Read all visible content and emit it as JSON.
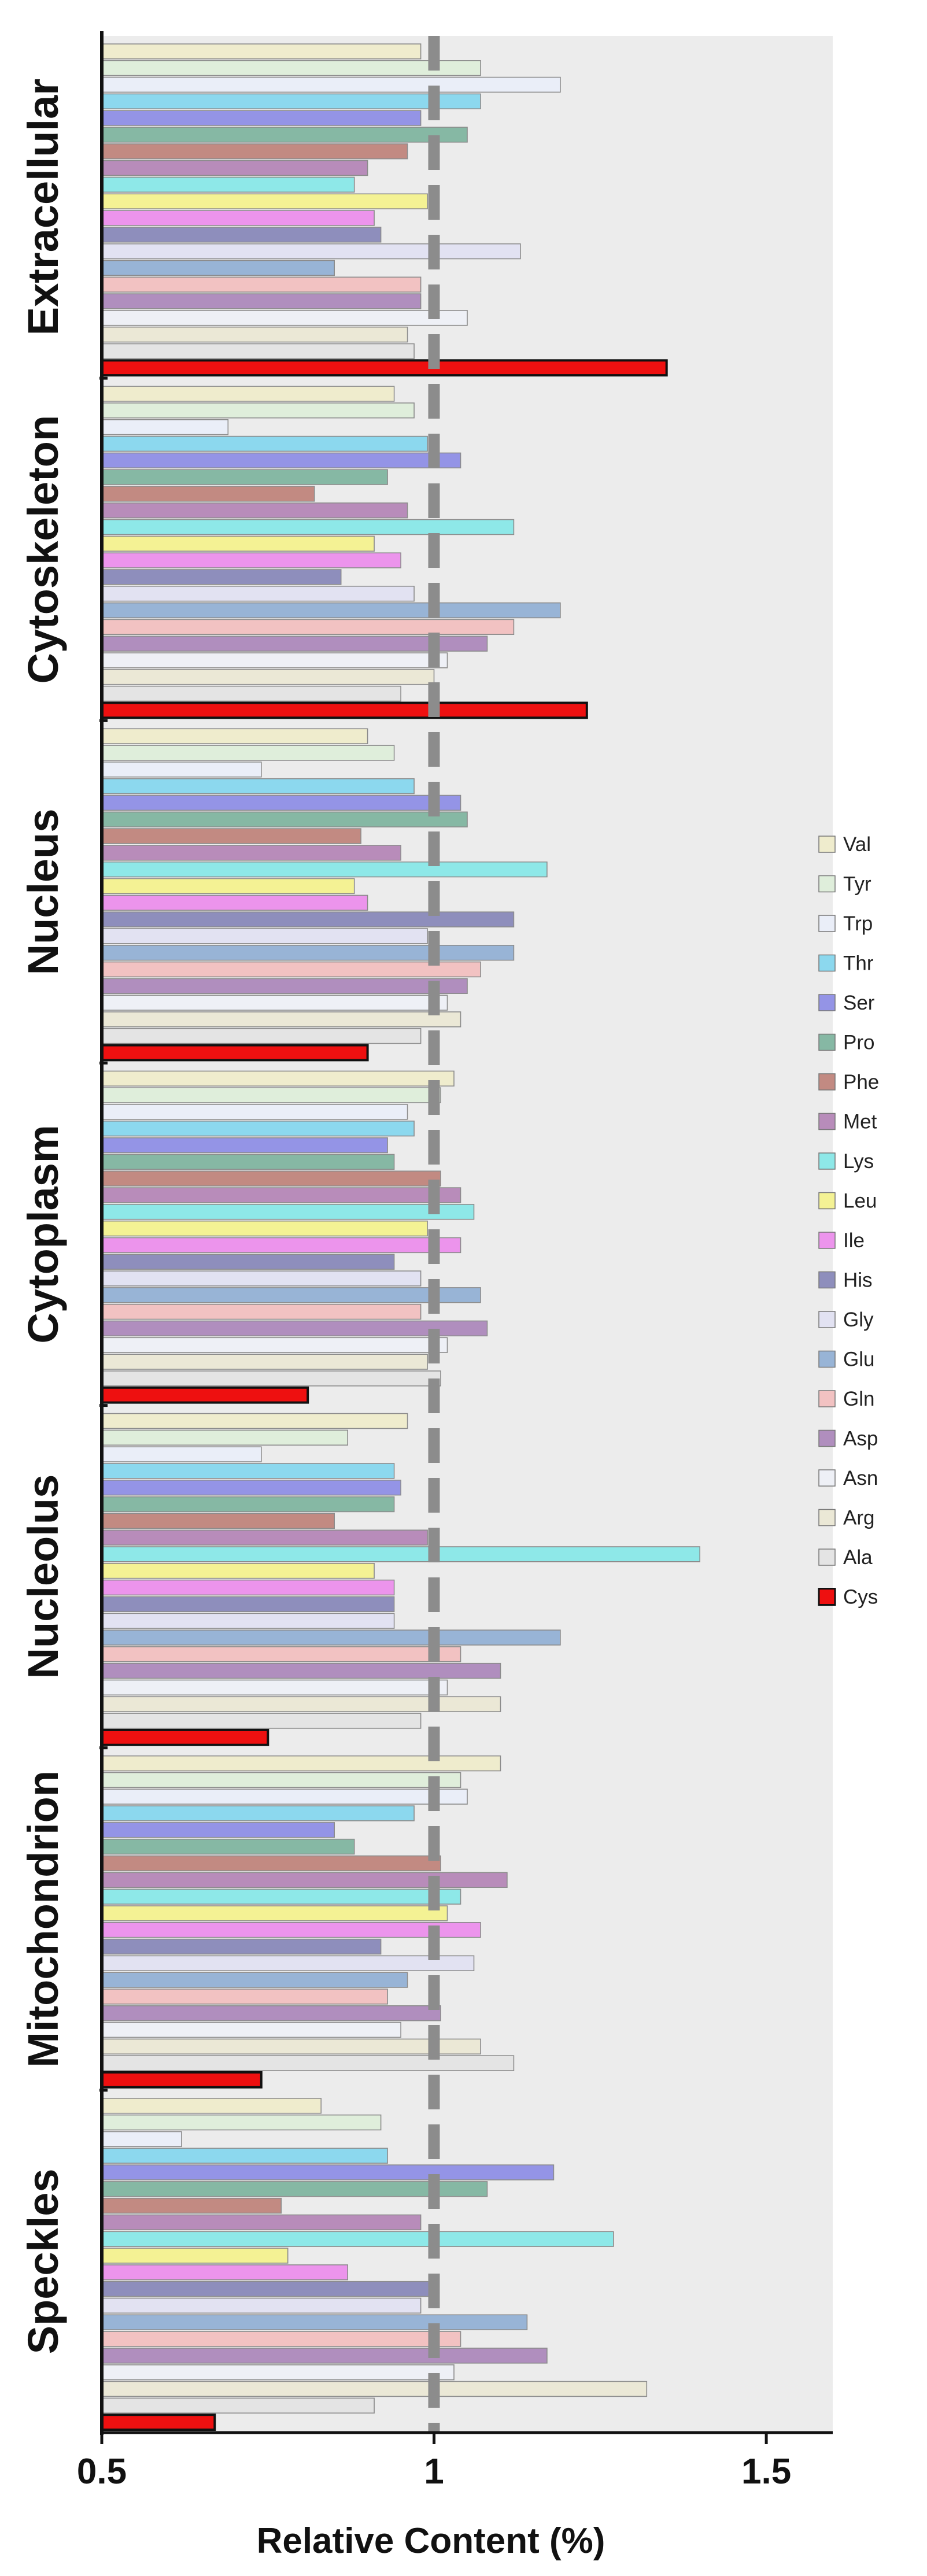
{
  "chart_data": {
    "type": "bar",
    "orientation": "horizontal",
    "xlabel": "Relative Content (%)",
    "xlim": [
      0.5,
      1.6
    ],
    "xticks": [
      0.5,
      1,
      1.5
    ],
    "xtick_labels": [
      "0.5",
      "1",
      "1.5"
    ],
    "reference_line": 1,
    "legend_position": "right",
    "colors": {
      "Val": "#efeccd",
      "Tyr": "#dfeedb",
      "Trp": "#eaeef8",
      "Thr": "#8cd8ee",
      "Ser": "#9494e6",
      "Pro": "#86b8a4",
      "Phe": "#c28a82",
      "Met": "#b88cba",
      "Lys": "#8ee8e8",
      "Leu": "#f4f294",
      "Ile": "#ec94ec",
      "His": "#8e8ebc",
      "Gly": "#e2e2f2",
      "Glu": "#98b4d6",
      "Gln": "#f2c2c2",
      "Asp": "#b08ebe",
      "Asn": "#eef0f6",
      "Arg": "#ebe8d6",
      "Ala": "#e4e4e4",
      "Cys": "#ee1010"
    },
    "series_order": [
      "Val",
      "Tyr",
      "Trp",
      "Thr",
      "Ser",
      "Pro",
      "Phe",
      "Met",
      "Lys",
      "Leu",
      "Ile",
      "His",
      "Gly",
      "Glu",
      "Gln",
      "Asp",
      "Asn",
      "Arg",
      "Ala",
      "Cys"
    ],
    "legend": [
      "Val",
      "Tyr",
      "Trp",
      "Thr",
      "Ser",
      "Pro",
      "Phe",
      "Met",
      "Lys",
      "Leu",
      "Ile",
      "His",
      "Gly",
      "Glu",
      "Gln",
      "Asp",
      "Asn",
      "Arg",
      "Ala",
      "Cys"
    ],
    "groups": [
      {
        "name": "Extracellular",
        "values": [
          0.98,
          1.07,
          1.19,
          1.07,
          0.98,
          1.05,
          0.96,
          0.9,
          0.88,
          0.99,
          0.91,
          0.92,
          1.13,
          0.85,
          0.98,
          0.98,
          1.05,
          0.96,
          0.97,
          1.35
        ]
      },
      {
        "name": "Cytoskeleton",
        "values": [
          0.94,
          0.97,
          0.69,
          0.99,
          1.04,
          0.93,
          0.82,
          0.96,
          1.12,
          0.91,
          0.95,
          0.86,
          0.97,
          1.19,
          1.12,
          1.08,
          1.02,
          1.0,
          0.95,
          1.23
        ]
      },
      {
        "name": "Nucleus",
        "values": [
          0.9,
          0.94,
          0.74,
          0.97,
          1.04,
          1.05,
          0.89,
          0.95,
          1.17,
          0.88,
          0.9,
          1.12,
          0.99,
          1.12,
          1.07,
          1.05,
          1.02,
          1.04,
          0.98,
          0.9
        ]
      },
      {
        "name": "Cytoplasm",
        "values": [
          1.03,
          1.01,
          0.96,
          0.97,
          0.93,
          0.94,
          1.01,
          1.04,
          1.06,
          0.99,
          1.04,
          0.94,
          0.98,
          1.07,
          0.98,
          1.08,
          1.02,
          0.99,
          1.01,
          0.81
        ]
      },
      {
        "name": "Nucleolus",
        "values": [
          0.96,
          0.87,
          0.74,
          0.94,
          0.95,
          0.94,
          0.85,
          0.99,
          1.4,
          0.91,
          0.94,
          0.94,
          0.94,
          1.19,
          1.04,
          1.1,
          1.02,
          1.1,
          0.98,
          0.75
        ]
      },
      {
        "name": "Mitochondrion",
        "values": [
          1.1,
          1.04,
          1.05,
          0.97,
          0.85,
          0.88,
          1.01,
          1.11,
          1.04,
          1.02,
          1.07,
          0.92,
          1.06,
          0.96,
          0.93,
          1.01,
          0.95,
          1.07,
          1.12,
          0.74
        ]
      },
      {
        "name": "Speckles",
        "values": [
          0.83,
          0.92,
          0.62,
          0.93,
          1.18,
          1.08,
          0.77,
          0.98,
          1.27,
          0.78,
          0.87,
          1.0,
          0.98,
          1.14,
          1.04,
          1.17,
          1.03,
          1.32,
          0.91,
          0.67
        ]
      }
    ]
  }
}
